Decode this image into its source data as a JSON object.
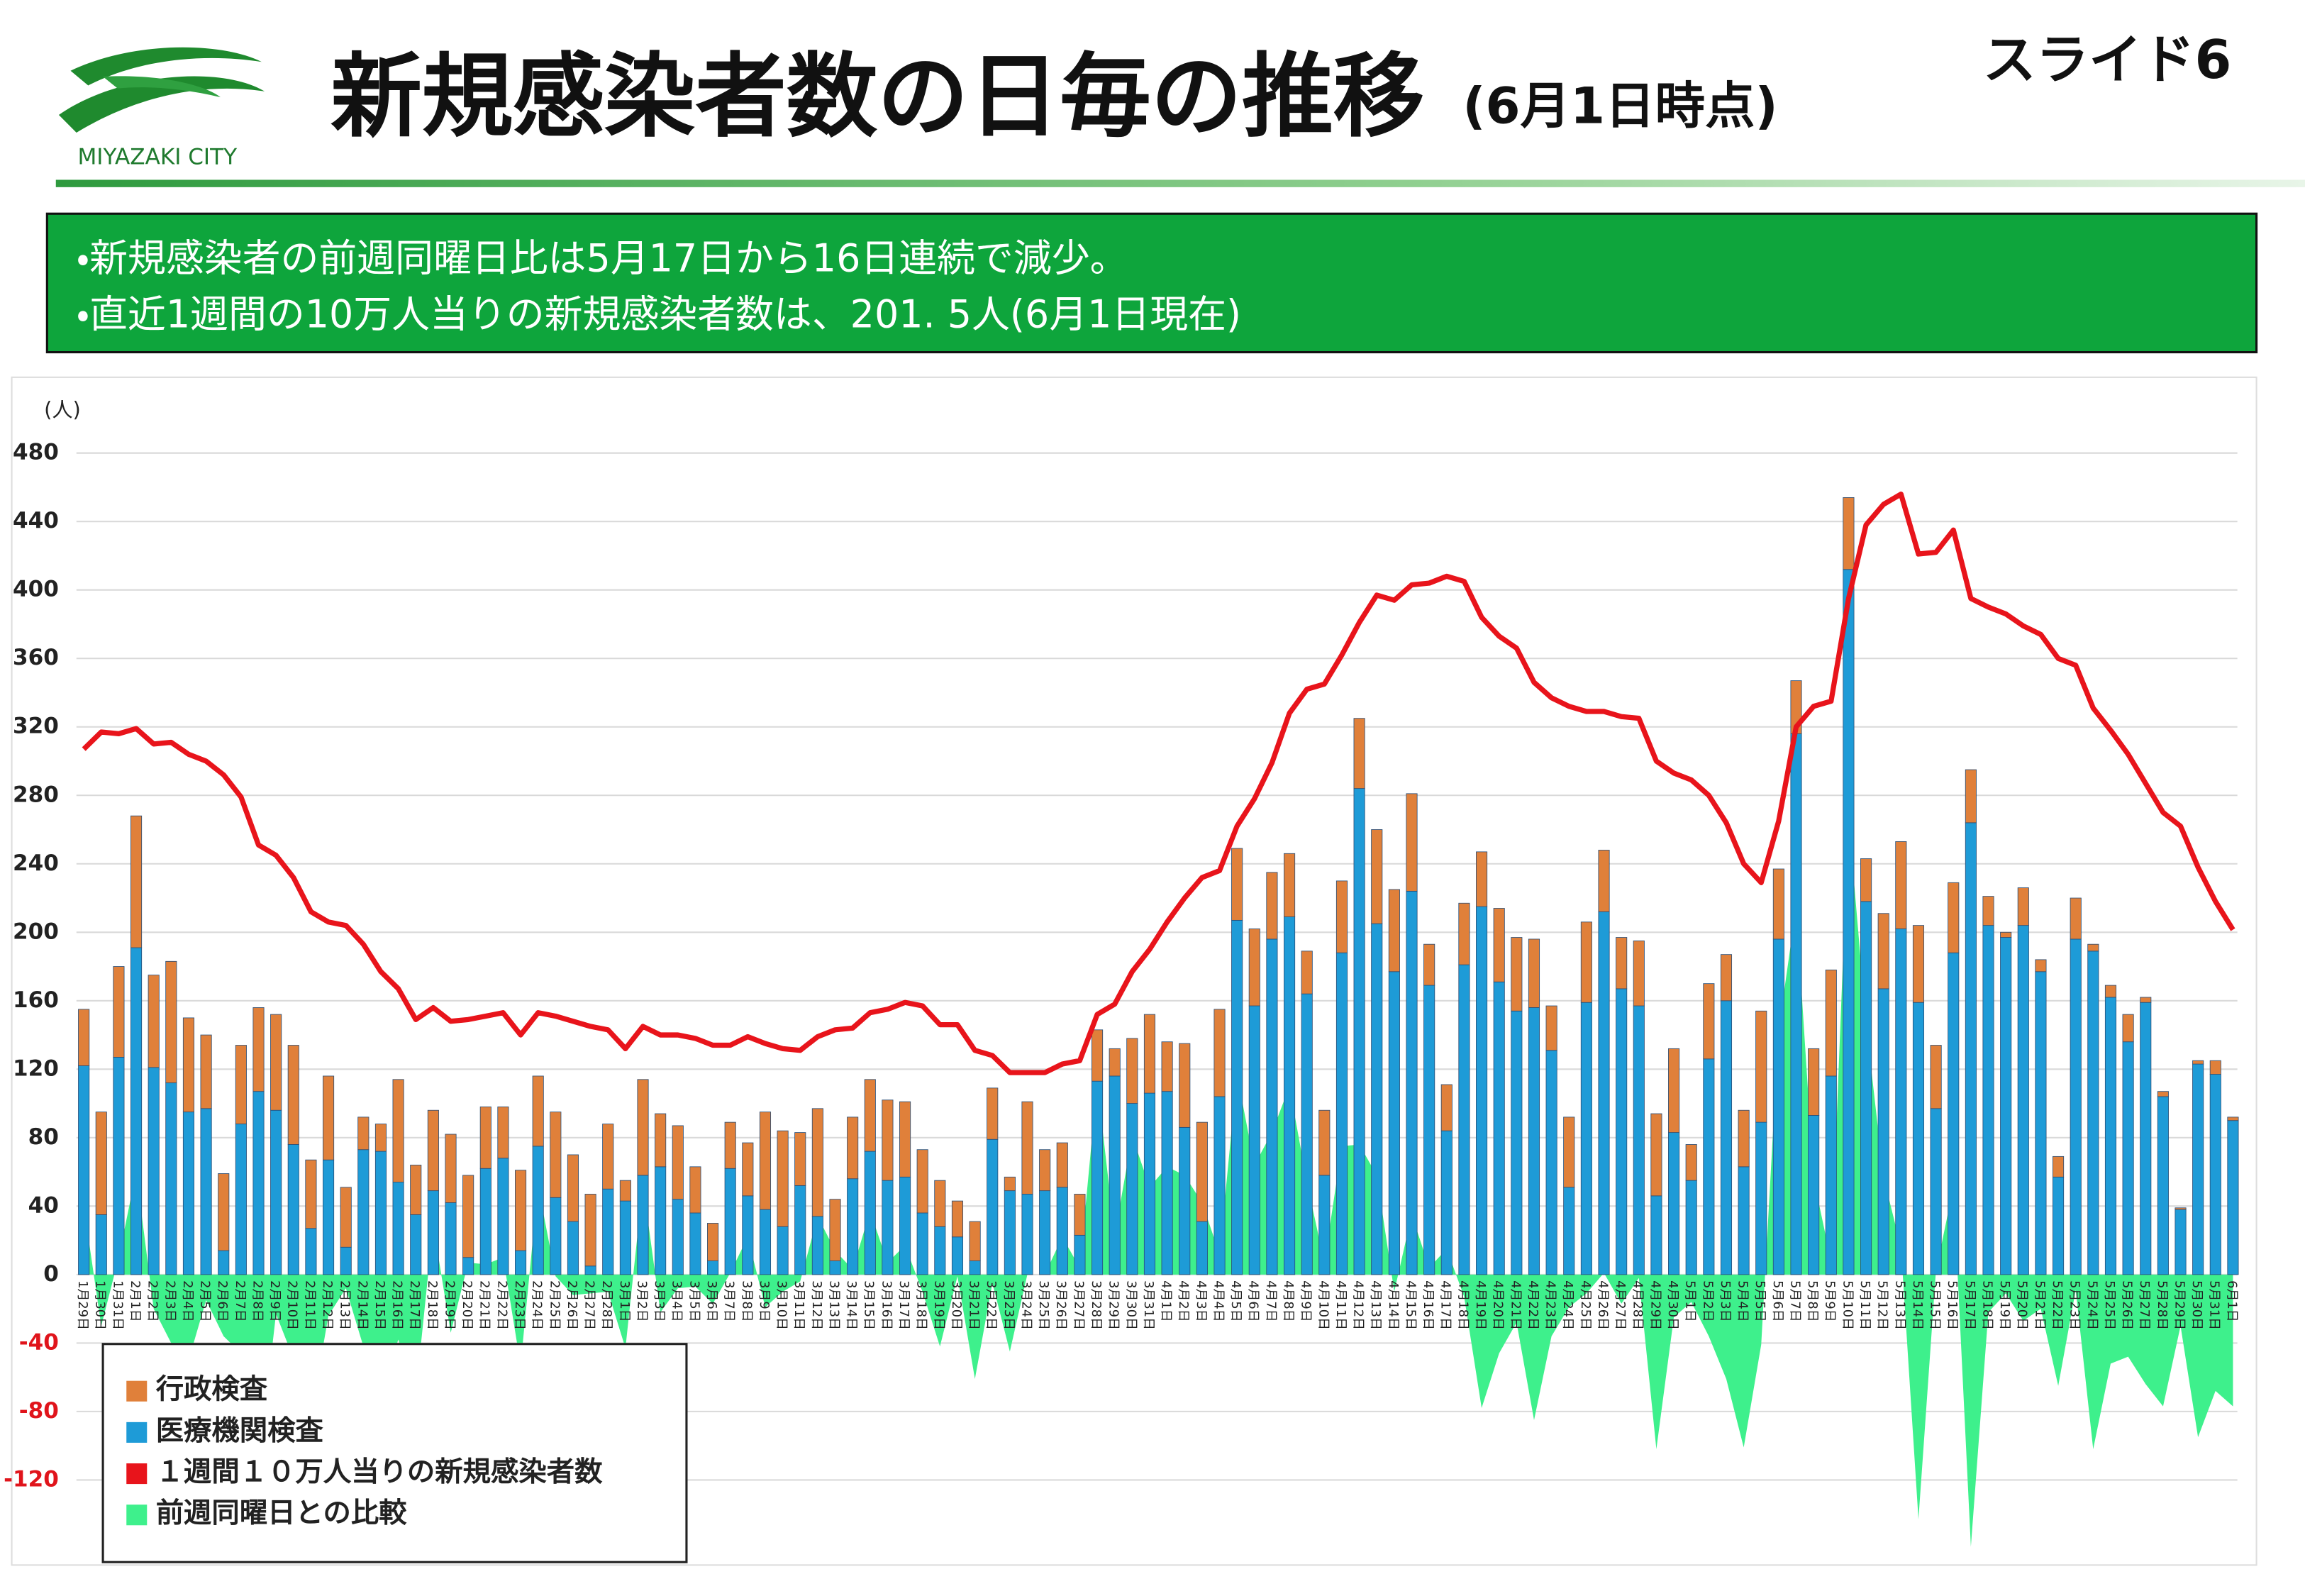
{
  "header": {
    "title": "新規感染者数の日毎の推移",
    "subtitle": "(6月1日時点)",
    "city": "MIYAZAKI CITY",
    "slide": "スライド6"
  },
  "notes": [
    "・新規感染者の前週同曜日比は5月17日から16日連続で減少。",
    "・直近1週間の10万人当りの新規感染者数は、201. 5人(6月1日現在)"
  ],
  "chart_data": {
    "type": "bar",
    "y_unit": "(人)",
    "categories": [
      "1月29日",
      "1月30日",
      "1月31日",
      "2月1日",
      "2月2日",
      "2月3日",
      "2月4日",
      "2月5日",
      "2月6日",
      "2月7日",
      "2月8日",
      "2月9日",
      "2月10日",
      "2月11日",
      "2月12日",
      "2月13日",
      "2月14日",
      "2月15日",
      "2月16日",
      "2月17日",
      "2月18日",
      "2月19日",
      "2月20日",
      "2月21日",
      "2月22日",
      "2月23日",
      "2月24日",
      "2月25日",
      "2月26日",
      "2月27日",
      "2月28日",
      "3月1日",
      "3月2日",
      "3月3日",
      "3月4日",
      "3月5日",
      "3月6日",
      "3月7日",
      "3月8日",
      "3月9日",
      "3月10日",
      "3月11日",
      "3月12日",
      "3月13日",
      "3月14日",
      "3月15日",
      "3月16日",
      "3月17日",
      "3月18日",
      "3月19日",
      "3月20日",
      "3月21日",
      "3月22日",
      "3月23日",
      "3月24日",
      "3月25日",
      "3月26日",
      "3月27日",
      "3月28日",
      "3月29日",
      "3月30日",
      "3月31日",
      "4月1日",
      "4月2日",
      "4月3日",
      "4月4日",
      "4月5日",
      "4月6日",
      "4月7日",
      "4月8日",
      "4月9日",
      "4月10日",
      "4月11日",
      "4月12日",
      "4月13日",
      "4月14日",
      "4月15日",
      "4月16日",
      "4月17日",
      "4月18日",
      "4月19日",
      "4月20日",
      "4月21日",
      "4月22日",
      "4月23日",
      "4月24日",
      "4月25日",
      "4月26日",
      "4月27日",
      "4月28日",
      "4月29日",
      "4月30日",
      "5月1日",
      "5月2日",
      "5月3日",
      "5月4日",
      "5月5日",
      "5月6日",
      "5月7日",
      "5月8日",
      "5月9日",
      "5月10日",
      "5月11日",
      "5月12日",
      "5月13日",
      "5月14日",
      "5月15日",
      "5月16日",
      "5月17日",
      "5月18日",
      "5月19日",
      "5月20日",
      "5月21日",
      "5月22日",
      "5月23日",
      "5月24日",
      "5月25日",
      "5月26日",
      "5月27日",
      "5月28日",
      "5月29日",
      "5月30日",
      "5月31日",
      "6月1日"
    ],
    "series": [
      {
        "name": "行政検査",
        "type": "bar",
        "color": "#e0803a",
        "values": [
          33,
          60,
          53,
          77,
          54,
          71,
          55,
          43,
          45,
          46,
          49,
          56,
          58,
          40,
          49,
          35,
          19,
          16,
          60,
          29,
          47,
          40,
          48,
          36,
          30,
          47,
          41,
          50,
          39,
          42,
          38,
          12,
          56,
          31,
          43,
          27,
          22,
          27,
          31,
          57,
          56,
          31,
          63,
          36,
          36,
          42,
          47,
          44,
          37,
          27,
          21,
          23,
          30,
          8,
          54,
          24,
          26,
          24,
          30,
          16,
          38,
          46,
          29,
          49,
          58,
          51,
          42,
          45,
          39,
          37,
          25,
          38,
          42,
          41,
          55,
          48,
          57,
          24,
          27,
          36,
          32,
          43,
          43,
          40,
          26,
          41,
          47,
          36,
          30,
          38,
          48,
          49,
          21,
          44,
          27,
          33,
          65,
          41,
          31,
          39,
          62,
          42,
          25,
          44,
          51,
          45,
          37,
          41,
          31,
          17,
          3,
          22,
          7,
          12,
          24,
          4,
          7,
          16,
          3,
          3,
          1,
          2,
          8,
          2
        ]
      },
      {
        "name": "医療機関検査",
        "type": "bar",
        "color": "#1e9bd7",
        "values": [
          122,
          35,
          127,
          191,
          121,
          112,
          95,
          97,
          14,
          88,
          107,
          96,
          76,
          27,
          67,
          16,
          73,
          72,
          54,
          35,
          49,
          42,
          10,
          62,
          68,
          14,
          75,
          45,
          31,
          5,
          50,
          43,
          58,
          63,
          44,
          36,
          8,
          62,
          46,
          38,
          28,
          52,
          34,
          8,
          56,
          72,
          55,
          57,
          36,
          28,
          22,
          8,
          79,
          49,
          47,
          49,
          51,
          23,
          113,
          116,
          100,
          106,
          107,
          86,
          31,
          104,
          207,
          157,
          196,
          209,
          164,
          58,
          188,
          284,
          205,
          177,
          224,
          169,
          84,
          181,
          215,
          171,
          154,
          156,
          131,
          51,
          159,
          212,
          167,
          157,
          46,
          83,
          55,
          126,
          160,
          63,
          89,
          196,
          316,
          93,
          116,
          412,
          218,
          167,
          202,
          159,
          97,
          188,
          264,
          204,
          197,
          204,
          177,
          57,
          196,
          189,
          162,
          136,
          159,
          104,
          38,
          123,
          117,
          90
        ]
      },
      {
        "name": "１週間１０万人当りの新規感染者数",
        "type": "line",
        "color": "#e8141b",
        "values": [
          307,
          317,
          316,
          319,
          310,
          311,
          304,
          300,
          292,
          279,
          251,
          245,
          232,
          212,
          206,
          204,
          193,
          177,
          167,
          149,
          156,
          148,
          149,
          151,
          153,
          140,
          153,
          151,
          148,
          145,
          143,
          132,
          145,
          140,
          140,
          138,
          134,
          134,
          139,
          135,
          132,
          131,
          139,
          143,
          144,
          153,
          155,
          159,
          157,
          146,
          146,
          131,
          128,
          118,
          118,
          118,
          123,
          125,
          152,
          158,
          177,
          190,
          206,
          220,
          232,
          236,
          262,
          278,
          299,
          328,
          342,
          345,
          362,
          381,
          397,
          394,
          403,
          404,
          408,
          405,
          384,
          373,
          366,
          346,
          337,
          332,
          329,
          329,
          326,
          325,
          300,
          293,
          289,
          280,
          264,
          240,
          229,
          265,
          320,
          332,
          335,
          395,
          438,
          450,
          456,
          421,
          422,
          435,
          395,
          390,
          386,
          379,
          374,
          360,
          356,
          331,
          318,
          304,
          287,
          270,
          262,
          238,
          218,
          201.5
        ]
      },
      {
        "name": "前週同曜日との比較",
        "type": "area",
        "color": "#3ef08c",
        "values": [
          40,
          -30,
          10,
          60,
          -20,
          -40,
          -50,
          -15,
          -36,
          -46,
          -112,
          -23,
          -49,
          -83,
          -24,
          -8,
          -42,
          -68,
          -38,
          -70,
          29,
          -34,
          7,
          6,
          10,
          -53,
          52,
          -1,
          -12,
          -11,
          -10,
          -43,
          53,
          -22,
          -8,
          -7,
          -17,
          1,
          22,
          -19,
          -10,
          -4,
          34,
          14,
          3,
          37,
          7,
          17,
          -10,
          -42,
          -1,
          -61,
          -5,
          -45,
          0,
          0,
          22,
          4,
          112,
          23,
          81,
          51,
          63,
          58,
          42,
          12,
          117,
          64,
          83,
          110,
          54,
          7,
          75,
          76,
          58,
          -10,
          35,
          4,
          15,
          -13,
          -78,
          -46,
          -28,
          -85,
          -36,
          -19,
          -11,
          1,
          -17,
          -2,
          -102,
          -25,
          -16,
          -36,
          -61,
          -101,
          -41,
          143,
          215,
          56,
          8,
          267,
          147,
          57,
          16,
          -143,
          2,
          51,
          -159,
          -22,
          -11,
          -27,
          -20,
          -65,
          -9,
          -102,
          -52,
          -48,
          -64,
          -77,
          -30,
          -95,
          -68,
          -77
        ]
      }
    ],
    "ylim": [
      -168,
      495
    ],
    "yticks": [
      -120,
      -80,
      -40,
      0,
      40,
      80,
      120,
      160,
      200,
      240,
      280,
      320,
      360,
      400,
      440,
      480
    ],
    "grid": true,
    "legend": "bottom-left"
  }
}
